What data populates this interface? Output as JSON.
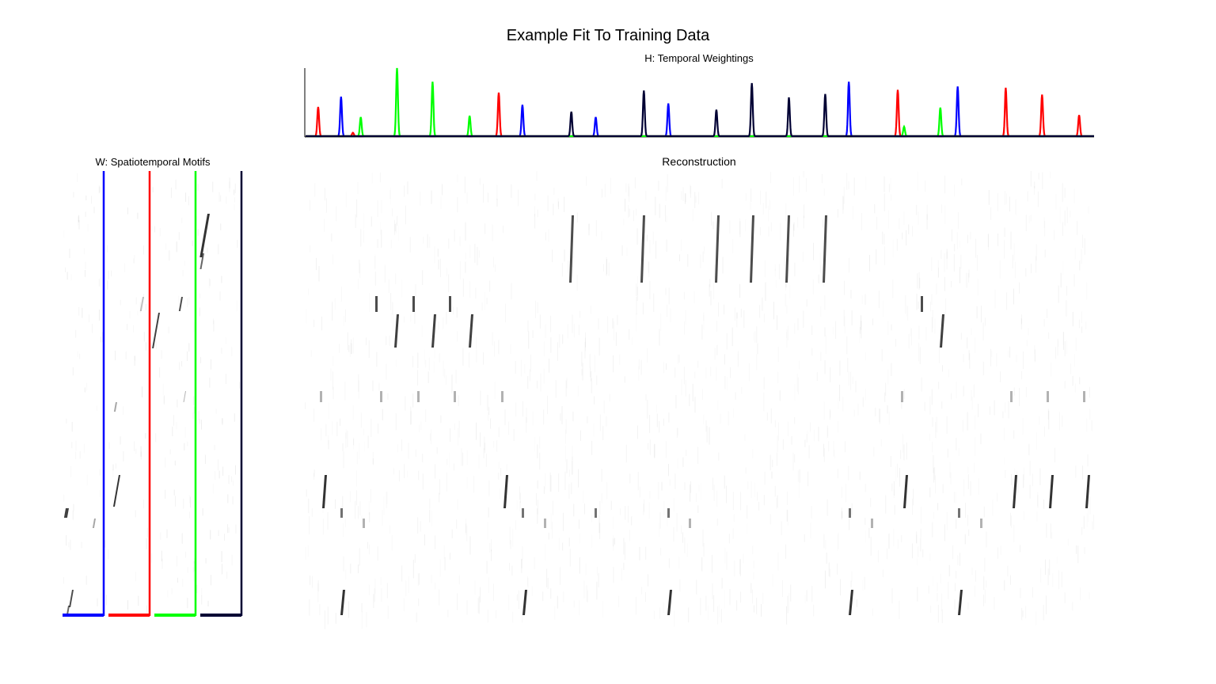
{
  "figure": {
    "title": "Example Fit To Training Data"
  },
  "panels": {
    "h_title": "H: Temporal Weightings",
    "w_title": "W: Spatiotemporal Motifs",
    "reconstruction_title": "Reconstruction"
  },
  "colors": {
    "factor_1": "#0000ff",
    "factor_2": "#ff0000",
    "factor_3": "#00ff00",
    "factor_4": "#000033",
    "background": "#ffffff",
    "ink": "#000000"
  },
  "chart_data": [
    {
      "type": "line",
      "title": "H: Temporal Weightings",
      "xlabel": "",
      "ylabel": "",
      "xlim": [
        0,
        1000
      ],
      "ylim": [
        0,
        1
      ],
      "grid": false,
      "legend": "none",
      "series": [
        {
          "color": "#0000ff",
          "peaks": [
            [
              45,
              0.58
            ],
            [
              275,
              0.46
            ],
            [
              368,
              0.28
            ],
            [
              460,
              0.48
            ],
            [
              689,
              0.8
            ],
            [
              827,
              0.73
            ]
          ]
        },
        {
          "color": "#ff0000",
          "peaks": [
            [
              16,
              0.43
            ],
            [
              60,
              0.05
            ],
            [
              245,
              0.64
            ],
            [
              751,
              0.68
            ],
            [
              888,
              0.71
            ],
            [
              934,
              0.61
            ],
            [
              981,
              0.31
            ]
          ]
        },
        {
          "color": "#00ff00",
          "peaks": [
            [
              70,
              0.28
            ],
            [
              116,
              1.0
            ],
            [
              161,
              0.8
            ],
            [
              208,
              0.3
            ],
            [
              759,
              0.14
            ],
            [
              805,
              0.42
            ]
          ]
        },
        {
          "color": "#000033",
          "peaks": [
            [
              337,
              0.36
            ],
            [
              429,
              0.67
            ],
            [
              521,
              0.39
            ],
            [
              566,
              0.78
            ],
            [
              613,
              0.57
            ],
            [
              659,
              0.62
            ]
          ]
        }
      ]
    },
    {
      "type": "heatmap",
      "title": "W: Spatiotemporal Motifs",
      "factors": 4,
      "factor_colors": [
        "#0000ff",
        "#ff0000",
        "#00ff00",
        "#000033"
      ],
      "motifs": [
        {
          "factor": 1,
          "events": [
            [
              0.05,
              0.76
            ],
            [
              0.2,
              0.96
            ],
            [
              0.72,
              0.84
            ],
            [
              1.0,
              0.9
            ],
            [
              0.55,
              0.7
            ]
          ]
        },
        {
          "factor": 2,
          "events": [
            [
              0.45,
              0.7
            ],
            [
              0.3,
              0.8
            ],
            [
              0.9,
              0.55
            ]
          ]
        },
        {
          "factor": 3,
          "events": [
            [
              0.3,
              0.34
            ],
            [
              0.55,
              0.31
            ],
            [
              0.75,
              0.05
            ],
            [
              0.9,
              0.2
            ]
          ]
        },
        {
          "factor": 4,
          "events": [
            [
              0.15,
              0.15
            ],
            [
              0.3,
              0.22
            ]
          ]
        }
      ]
    },
    {
      "type": "heatmap",
      "title": "Reconstruction",
      "xlim": [
        0,
        1000
      ],
      "neurons": 100
    }
  ]
}
